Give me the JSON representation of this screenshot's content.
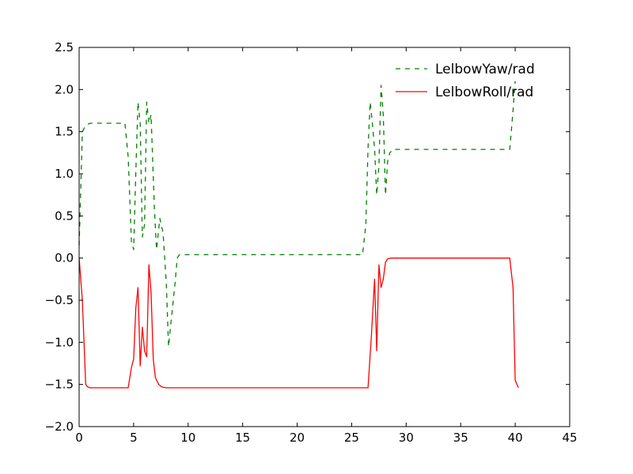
{
  "chart_data": {
    "type": "line",
    "title": "",
    "xlabel": "",
    "ylabel": "",
    "xlim": [
      0,
      45
    ],
    "ylim": [
      -2.0,
      2.5
    ],
    "xticks": [
      0,
      5,
      10,
      15,
      20,
      25,
      30,
      35,
      40,
      45
    ],
    "xtick_labels": [
      "0",
      "5",
      "10",
      "15",
      "20",
      "25",
      "30",
      "35",
      "40",
      "45"
    ],
    "yticks": [
      -2.0,
      -1.5,
      -1.0,
      -0.5,
      0.0,
      0.5,
      1.0,
      1.5,
      2.0,
      2.5
    ],
    "ytick_labels": [
      "−2.0",
      "−1.5",
      "−1.0",
      "−0.5",
      "0.0",
      "0.5",
      "1.0",
      "1.5",
      "2.0",
      "2.5"
    ],
    "grid": false,
    "legend_position": "top-right",
    "series": [
      {
        "name": "LelbowYaw/rad",
        "color": "#008000",
        "linestyle": "dashed",
        "x": [
          0,
          0.3,
          0.5,
          0.7,
          1.0,
          2.0,
          3.0,
          4.2,
          4.5,
          4.8,
          5.0,
          5.2,
          5.4,
          5.6,
          5.8,
          6.0,
          6.2,
          6.4,
          6.6,
          6.9,
          7.1,
          7.4,
          7.7,
          8.0,
          8.2,
          8.4,
          8.8,
          9.0,
          9.2,
          10,
          15,
          20,
          25,
          26.0,
          26.3,
          26.5,
          26.7,
          26.9,
          27.1,
          27.3,
          27.5,
          27.7,
          27.9,
          28.1,
          28.3,
          28.5,
          28.8,
          30,
          35,
          39.5,
          39.8,
          40.0
        ],
        "y": [
          0.15,
          1.5,
          1.55,
          1.58,
          1.6,
          1.6,
          1.6,
          1.6,
          1.2,
          0.2,
          0.1,
          1.0,
          1.85,
          1.6,
          0.25,
          0.4,
          1.85,
          1.6,
          1.7,
          0.6,
          0.1,
          0.47,
          0.3,
          -0.3,
          -1.05,
          -0.8,
          -0.3,
          0.0,
          0.04,
          0.04,
          0.04,
          0.04,
          0.04,
          0.04,
          0.4,
          1.3,
          1.85,
          1.6,
          1.3,
          0.75,
          1.1,
          2.05,
          1.7,
          0.75,
          1.15,
          1.25,
          1.29,
          1.29,
          1.29,
          1.29,
          1.75,
          2.1
        ]
      },
      {
        "name": "LelbowRoll/rad",
        "color": "#ff0000",
        "linestyle": "solid",
        "x": [
          0,
          0.3,
          0.6,
          0.8,
          1.0,
          2.0,
          3.0,
          4.5,
          4.8,
          5.0,
          5.2,
          5.4,
          5.6,
          5.8,
          6.0,
          6.2,
          6.4,
          6.6,
          6.8,
          7.0,
          7.3,
          7.6,
          8.0,
          10,
          15,
          20,
          26.0,
          26.5,
          26.8,
          27.1,
          27.3,
          27.5,
          27.7,
          27.9,
          28.1,
          28.3,
          28.6,
          29,
          30,
          35,
          39.5,
          39.8,
          40.0,
          40.3
        ],
        "y": [
          0.0,
          -0.5,
          -1.5,
          -1.53,
          -1.54,
          -1.54,
          -1.54,
          -1.54,
          -1.3,
          -1.2,
          -0.6,
          -0.35,
          -1.28,
          -0.82,
          -1.1,
          -1.17,
          -0.08,
          -0.4,
          -1.2,
          -1.42,
          -1.5,
          -1.53,
          -1.54,
          -1.54,
          -1.54,
          -1.54,
          -1.54,
          -1.54,
          -0.95,
          -0.25,
          -1.1,
          -0.08,
          -0.35,
          -0.25,
          -0.05,
          -0.01,
          0.0,
          0.0,
          0.0,
          0.0,
          0.0,
          -0.35,
          -1.45,
          -1.54
        ]
      }
    ]
  }
}
